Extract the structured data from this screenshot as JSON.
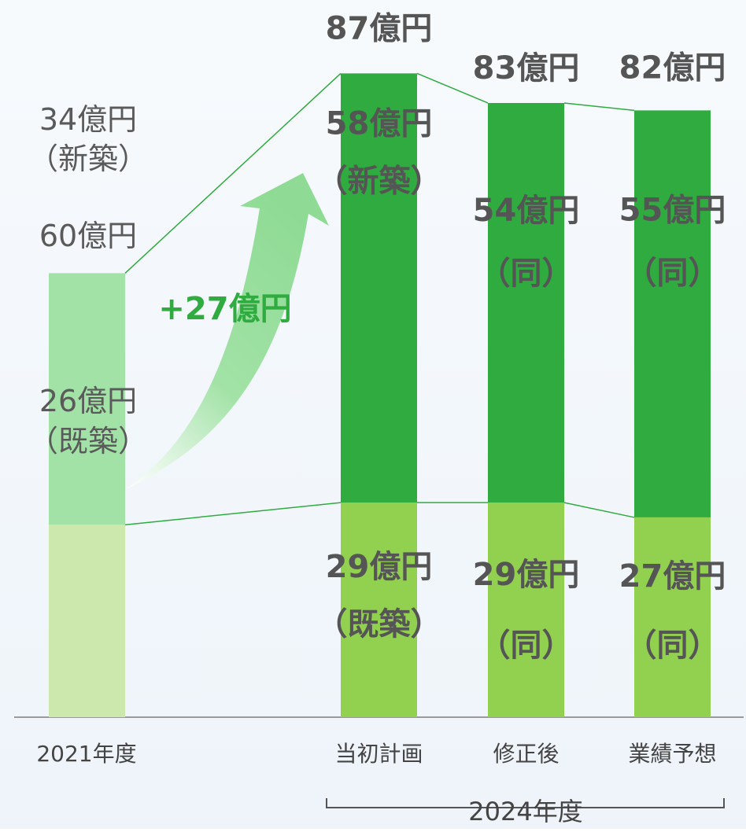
{
  "chart_data": {
    "type": "bar",
    "stacked": true,
    "categories": [
      "2021年度",
      "当初計画",
      "修正後",
      "業績予想"
    ],
    "group_label": "2024年度",
    "series": [
      {
        "values": [
          26,
          29,
          29,
          27
        ],
        "colors": [
          "#cde8ad",
          "#92d050",
          "#92d050",
          "#92d050"
        ],
        "value_labels": [
          "26億円",
          "29億円",
          "29億円",
          "27億円"
        ],
        "sub_labels": [
          "（既築）",
          "（既築）",
          "（同）",
          "（同）"
        ]
      },
      {
        "values": [
          34,
          58,
          54,
          55
        ],
        "colors": [
          "#a2e2a6",
          "#2fab3f",
          "#2fab3f",
          "#2fab3f"
        ],
        "value_labels": [
          "34億円",
          "58億円",
          "54億円",
          "55億円"
        ],
        "sub_labels": [
          "（新築）",
          "（新築）",
          "（同）",
          "（同）"
        ]
      }
    ],
    "total_labels": [
      "60億円",
      "87億円",
      "83億円",
      "82億円"
    ],
    "annotation": "+27億円"
  }
}
